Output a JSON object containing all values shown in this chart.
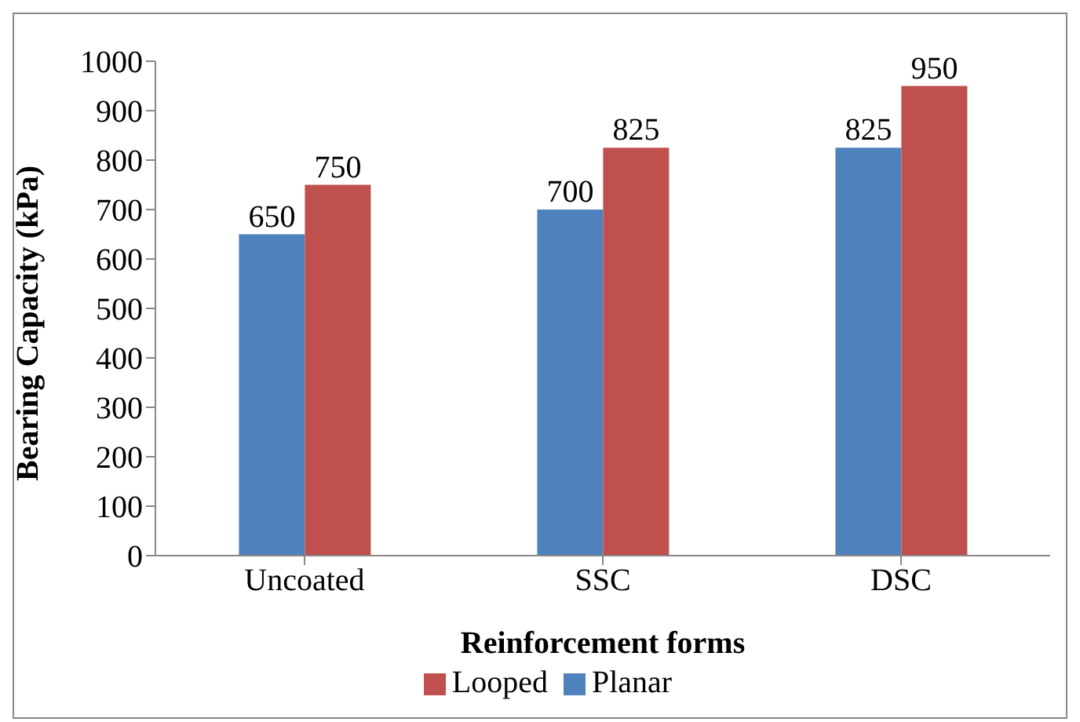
{
  "chart_data": {
    "type": "bar",
    "xlabel": "Reinforcement forms",
    "ylabel": "Bearing Capacity (kPa)",
    "categories": [
      "Uncoated",
      "SSC",
      "DSC"
    ],
    "series": [
      {
        "name": "Planar",
        "color": "#4f81bd",
        "values": [
          650,
          700,
          825
        ]
      },
      {
        "name": "Looped",
        "color": "#c0504d",
        "values": [
          750,
          825,
          950
        ]
      }
    ],
    "ylim": [
      0,
      1000
    ],
    "yticks": [
      0,
      100,
      200,
      300,
      400,
      500,
      600,
      700,
      800,
      900,
      1000
    ],
    "grid": false,
    "legend": "bottom",
    "data_labels": true
  }
}
